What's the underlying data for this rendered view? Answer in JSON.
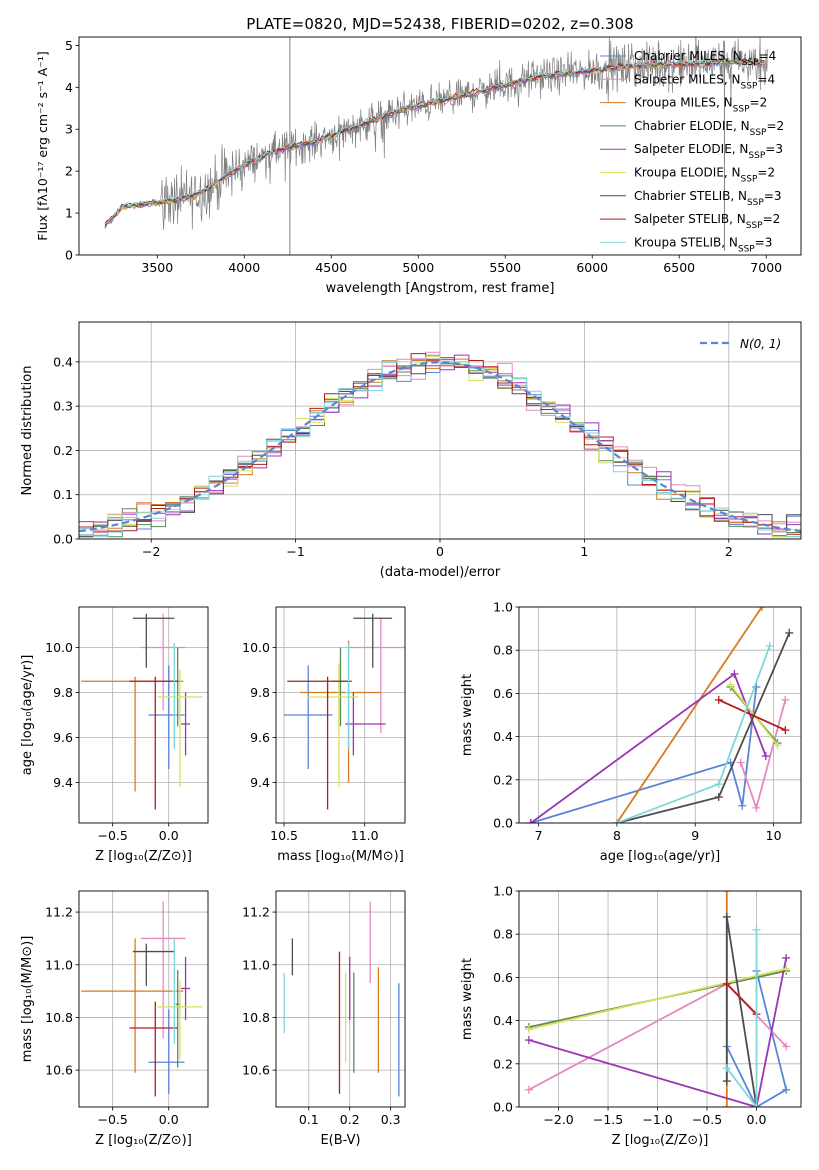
{
  "figure": {
    "title": "PLATE=0820, MJD=52438, FIBERID=0202, z=0.308"
  },
  "colors": {
    "Chabrier MILES": "#5b84d6",
    "Salpeter MILES": "#e58ac0",
    "Kroupa MILES": "#d97a1f",
    "Chabrier ELODIE": "#5a8a5a",
    "Salpeter ELODIE": "#9b35b5",
    "Kroupa ELODIE": "#d7e25a",
    "Chabrier STELIB": "#4d4d4d",
    "Salpeter STELIB": "#b51c1c",
    "Kroupa STELIB": "#7fd6d9",
    "data": "#808080",
    "normal": "#5b84d6"
  },
  "chart_data": [
    {
      "id": "spectrum",
      "type": "line",
      "xlabel": "wavelength [Angstrom, rest frame]",
      "ylabel": "Flux [fλ10⁻¹⁷ erg cm⁻² s⁻¹ A⁻¹]",
      "xlim": [
        3050,
        7200
      ],
      "ylim": [
        0,
        5.2
      ],
      "xticks": [
        3500,
        4000,
        4500,
        5000,
        5500,
        6000,
        6500,
        7000
      ],
      "yticks": [
        0,
        1,
        2,
        3,
        4,
        5
      ],
      "legend_position": "top-right",
      "legend": [
        {
          "name": "Chabrier MILES, N",
          "sub": "SSP",
          "tail": "=4",
          "key": "Chabrier MILES"
        },
        {
          "name": "Salpeter MILES, N",
          "sub": "SSP",
          "tail": "=4",
          "key": "Salpeter MILES"
        },
        {
          "name": "Kroupa MILES, N",
          "sub": "SSP",
          "tail": "=2",
          "key": "Kroupa MILES"
        },
        {
          "name": "Chabrier ELODIE, N",
          "sub": "SSP",
          "tail": "=2",
          "key": "Chabrier ELODIE"
        },
        {
          "name": "Salpeter ELODIE, N",
          "sub": "SSP",
          "tail": "=3",
          "key": "Salpeter ELODIE"
        },
        {
          "name": "Kroupa ELODIE, N",
          "sub": "SSP",
          "tail": "=2",
          "key": "Kroupa ELODIE"
        },
        {
          "name": "Chabrier STELIB, N",
          "sub": "SSP",
          "tail": "=3",
          "key": "Chabrier STELIB"
        },
        {
          "name": "Salpeter STELIB, N",
          "sub": "SSP",
          "tail": "=2",
          "key": "Salpeter STELIB"
        },
        {
          "name": "Kroupa STELIB, N",
          "sub": "SSP",
          "tail": "=3",
          "key": "Kroupa STELIB"
        }
      ],
      "continuum": {
        "x": [
          3200,
          3300,
          3400,
          3500,
          3600,
          3700,
          3800,
          3900,
          4000,
          4100,
          4200,
          4300,
          4400,
          4500,
          4600,
          4700,
          4800,
          4900,
          5000,
          5100,
          5200,
          5300,
          5400,
          5500,
          5600,
          5700,
          5800,
          5900,
          6000,
          6100,
          6200,
          6300,
          6400,
          6500,
          6600,
          6700,
          6800,
          6900,
          7000
        ],
        "y": [
          0.7,
          1.15,
          1.2,
          1.25,
          1.3,
          1.4,
          1.6,
          1.9,
          2.15,
          2.35,
          2.5,
          2.6,
          2.7,
          2.85,
          3.0,
          3.15,
          3.3,
          3.45,
          3.55,
          3.65,
          3.75,
          3.85,
          3.95,
          4.05,
          4.15,
          4.25,
          4.3,
          4.35,
          4.4,
          4.45,
          4.5,
          4.5,
          4.55,
          4.55,
          4.55,
          4.6,
          4.6,
          4.6,
          4.55
        ]
      }
    },
    {
      "id": "residuals",
      "type": "histogram",
      "xlabel": "(data-model)/error",
      "ylabel": "Normed distribution",
      "xlim": [
        -2.5,
        2.5
      ],
      "ylim": [
        0,
        0.49
      ],
      "xticks": [
        -2,
        -1,
        0,
        1,
        2
      ],
      "yticks": [
        0.0,
        0.1,
        0.2,
        0.3,
        0.4
      ],
      "legend_position": "top-right",
      "legend": "N(0, 1)"
    },
    {
      "id": "age_vs_Z",
      "type": "errorbar",
      "xlabel": "Z [log₁₀(Z/Z⊙)]",
      "ylabel": "age  [log₁₀(age/yr)]",
      "xlim": [
        -0.8,
        0.35
      ],
      "ylim": [
        9.22,
        10.18
      ],
      "xticks": [
        -0.5,
        0.0
      ],
      "yticks": [
        9.4,
        9.6,
        9.8,
        10.0
      ],
      "points": [
        {
          "key": "Chabrier MILES",
          "x": 0.0,
          "xerr": [
            0.18,
            0.14
          ],
          "y": 9.7,
          "yerr": [
            0.24,
            0.22
          ]
        },
        {
          "key": "Salpeter MILES",
          "x": -0.05,
          "xerr": [
            0.2,
            0.2
          ],
          "y": 10.0,
          "yerr": [
            0.28,
            0.15
          ]
        },
        {
          "key": "Kroupa MILES",
          "x": -0.3,
          "xerr": [
            0.48,
            0.43
          ],
          "y": 9.85,
          "yerr": [
            0.49,
            0.02
          ]
        },
        {
          "key": "Chabrier ELODIE",
          "x": 0.08,
          "xerr": [
            0.02,
            0.02
          ],
          "y": 9.85,
          "yerr": [
            0.2,
            0.15
          ]
        },
        {
          "key": "Salpeter ELODIE",
          "x": 0.15,
          "xerr": [
            0.04,
            0.04
          ],
          "y": 9.66,
          "yerr": [
            0.14,
            0.14
          ]
        },
        {
          "key": "Kroupa ELODIE",
          "x": 0.1,
          "xerr": [
            0.2,
            0.2
          ],
          "y": 9.78,
          "yerr": [
            0.4,
            0.12
          ]
        },
        {
          "key": "Chabrier STELIB",
          "x": -0.2,
          "xerr": [
            0.12,
            0.25
          ],
          "y": 10.13,
          "yerr": [
            0.22,
            0.02
          ]
        },
        {
          "key": "Salpeter STELIB",
          "x": -0.12,
          "xerr": [
            0.23,
            0.2
          ],
          "y": 9.85,
          "yerr": [
            0.57,
            0.02
          ]
        },
        {
          "key": "Kroupa STELIB",
          "x": 0.05,
          "xerr": [
            0.02,
            0.02
          ],
          "y": 9.8,
          "yerr": [
            0.25,
            0.22
          ]
        }
      ]
    },
    {
      "id": "age_vs_mass",
      "type": "errorbar",
      "xlabel": "mass [log₁₀(M/M⊙)]",
      "ylabel": "",
      "xlim": [
        10.45,
        11.25
      ],
      "ylim": [
        9.22,
        10.18
      ],
      "xticks": [
        10.5,
        11.0
      ],
      "yticks": [
        9.4,
        9.6,
        9.8,
        10.0
      ],
      "points": [
        {
          "key": "Chabrier MILES",
          "x": 10.65,
          "xerr": [
            0.15,
            0.15
          ],
          "y": 9.7,
          "yerr": [
            0.24,
            0.22
          ]
        },
        {
          "key": "Salpeter MILES",
          "x": 11.1,
          "xerr": [
            0.2,
            0.15
          ],
          "y": 10.0,
          "yerr": [
            0.38,
            0.13
          ]
        },
        {
          "key": "Kroupa MILES",
          "x": 10.9,
          "xerr": [
            0.3,
            0.2
          ],
          "y": 9.8,
          "yerr": [
            0.4,
            0.23
          ]
        },
        {
          "key": "Chabrier ELODIE",
          "x": 10.85,
          "xerr": [
            0.05,
            0.05
          ],
          "y": 9.85,
          "yerr": [
            0.2,
            0.15
          ]
        },
        {
          "key": "Salpeter ELODIE",
          "x": 10.93,
          "xerr": [
            0.05,
            0.2
          ],
          "y": 9.66,
          "yerr": [
            0.14,
            0.14
          ]
        },
        {
          "key": "Kroupa ELODIE",
          "x": 10.84,
          "xerr": [
            0.2,
            0.12
          ],
          "y": 9.78,
          "yerr": [
            0.4,
            0.15
          ]
        },
        {
          "key": "Chabrier STELIB",
          "x": 11.05,
          "xerr": [
            0.12,
            0.12
          ],
          "y": 10.13,
          "yerr": [
            0.22,
            0.02
          ]
        },
        {
          "key": "Salpeter STELIB",
          "x": 10.77,
          "xerr": [
            0.25,
            0.15
          ],
          "y": 9.85,
          "yerr": [
            0.57,
            0.02
          ]
        },
        {
          "key": "Kroupa STELIB",
          "x": 10.9,
          "xerr": [
            0.02,
            0.02
          ],
          "y": 9.8,
          "yerr": [
            0.25,
            0.22
          ]
        }
      ]
    },
    {
      "id": "weight_vs_age",
      "type": "line",
      "xlabel": "age  [log₁₀(age/yr)]",
      "ylabel": "mass weight",
      "xlim": [
        6.75,
        10.35
      ],
      "ylim": [
        0,
        1.0
      ],
      "xticks": [
        7,
        8,
        9,
        10
      ],
      "yticks": [
        0.0,
        0.2,
        0.4,
        0.6,
        0.8,
        1.0
      ],
      "series": [
        {
          "key": "Chabrier MILES",
          "x": [
            6.9,
            9.45,
            9.6,
            9.78
          ],
          "y": [
            0.0,
            0.28,
            0.08,
            0.63
          ]
        },
        {
          "key": "Salpeter MILES",
          "x": [
            9.58,
            9.78,
            10.15
          ],
          "y": [
            0.28,
            0.07,
            0.57
          ]
        },
        {
          "key": "Kroupa MILES",
          "x": [
            8.0,
            9.85
          ],
          "y": [
            0.0,
            1.0
          ]
        },
        {
          "key": "Chabrier ELODIE",
          "x": [
            9.45,
            10.05
          ],
          "y": [
            0.63,
            0.37
          ]
        },
        {
          "key": "Salpeter ELODIE",
          "x": [
            6.9,
            9.5,
            9.9
          ],
          "y": [
            0.0,
            0.69,
            0.31
          ]
        },
        {
          "key": "Kroupa ELODIE",
          "x": [
            9.45,
            10.05
          ],
          "y": [
            0.64,
            0.36
          ]
        },
        {
          "key": "Chabrier STELIB",
          "x": [
            8.0,
            9.3,
            10.2
          ],
          "y": [
            0.0,
            0.12,
            0.88
          ]
        },
        {
          "key": "Salpeter STELIB",
          "x": [
            9.3,
            10.15
          ],
          "y": [
            0.57,
            0.43
          ]
        },
        {
          "key": "Kroupa STELIB",
          "x": [
            8.0,
            9.3,
            9.95
          ],
          "y": [
            0.0,
            0.18,
            0.82
          ]
        }
      ]
    },
    {
      "id": "mass_vs_Z",
      "type": "errorbar",
      "xlabel": "Z [log₁₀(Z/Z⊙)]",
      "ylabel": "mass [log₁₀(M/M⊙)]",
      "xlim": [
        -0.8,
        0.35
      ],
      "ylim": [
        10.46,
        11.28
      ],
      "xticks": [
        -0.5,
        0.0
      ],
      "yticks": [
        10.6,
        10.8,
        11.0,
        11.2
      ],
      "points": [
        {
          "key": "Chabrier MILES",
          "x": 0.0,
          "xerr": [
            0.18,
            0.14
          ],
          "y": 10.63,
          "yerr": [
            0.12,
            0.2
          ]
        },
        {
          "key": "Salpeter MILES",
          "x": -0.05,
          "xerr": [
            0.2,
            0.2
          ],
          "y": 11.1,
          "yerr": [
            0.38,
            0.14
          ]
        },
        {
          "key": "Kroupa MILES",
          "x": -0.3,
          "xerr": [
            0.48,
            0.43
          ],
          "y": 10.9,
          "yerr": [
            0.31,
            0.2
          ]
        },
        {
          "key": "Chabrier ELODIE",
          "x": 0.08,
          "xerr": [
            0.02,
            0.02
          ],
          "y": 10.85,
          "yerr": [
            0.24,
            0.13
          ]
        },
        {
          "key": "Salpeter ELODIE",
          "x": 0.15,
          "xerr": [
            0.04,
            0.04
          ],
          "y": 10.91,
          "yerr": [
            0.12,
            0.12
          ]
        },
        {
          "key": "Kroupa ELODIE",
          "x": 0.1,
          "xerr": [
            0.2,
            0.2
          ],
          "y": 10.84,
          "yerr": [
            0.2,
            0.1
          ]
        },
        {
          "key": "Chabrier STELIB",
          "x": -0.2,
          "xerr": [
            0.12,
            0.25
          ],
          "y": 11.05,
          "yerr": [
            0.13,
            0.03
          ]
        },
        {
          "key": "Salpeter STELIB",
          "x": -0.12,
          "xerr": [
            0.23,
            0.2
          ],
          "y": 10.76,
          "yerr": [
            0.26,
            0.1
          ]
        },
        {
          "key": "Kroupa STELIB",
          "x": 0.05,
          "xerr": [
            0.02,
            0.02
          ],
          "y": 10.9,
          "yerr": [
            0.2,
            0.2
          ]
        }
      ]
    },
    {
      "id": "mass_vs_EBV",
      "type": "errorbar",
      "xlabel": "E(B-V)",
      "ylabel": "",
      "xlim": [
        0.02,
        0.335
      ],
      "ylim": [
        10.46,
        11.28
      ],
      "xticks": [
        0.1,
        0.2,
        0.3
      ],
      "yticks": [
        10.6,
        10.8,
        11.0,
        11.2
      ],
      "points": [
        {
          "key": "Chabrier MILES",
          "x": 0.32,
          "xerr": [
            0,
            0
          ],
          "y": 10.72,
          "yerr": [
            0.22,
            0.21
          ]
        },
        {
          "key": "Salpeter MILES",
          "x": 0.25,
          "xerr": [
            0,
            0
          ],
          "y": 11.1,
          "yerr": [
            0.17,
            0.14
          ]
        },
        {
          "key": "Kroupa MILES",
          "x": 0.27,
          "xerr": [
            0,
            0
          ],
          "y": 10.83,
          "yerr": [
            0.24,
            0.16
          ]
        },
        {
          "key": "Chabrier ELODIE",
          "x": 0.21,
          "xerr": [
            0,
            0
          ],
          "y": 10.83,
          "yerr": [
            0.24,
            0.14
          ]
        },
        {
          "key": "Salpeter ELODIE",
          "x": 0.2,
          "xerr": [
            0,
            0
          ],
          "y": 10.91,
          "yerr": [
            0.12,
            0.12
          ]
        },
        {
          "key": "Kroupa ELODIE",
          "x": 0.19,
          "xerr": [
            0,
            0
          ],
          "y": 10.83,
          "yerr": [
            0.2,
            0.14
          ]
        },
        {
          "key": "Chabrier STELIB",
          "x": 0.06,
          "xerr": [
            0,
            0
          ],
          "y": 11.04,
          "yerr": [
            0.08,
            0.06
          ]
        },
        {
          "key": "Salpeter STELIB",
          "x": 0.175,
          "xerr": [
            0,
            0
          ],
          "y": 10.78,
          "yerr": [
            0.27,
            0.27
          ]
        },
        {
          "key": "Kroupa STELIB",
          "x": 0.04,
          "xerr": [
            0,
            0
          ],
          "y": 10.86,
          "yerr": [
            0.12,
            0.11
          ]
        }
      ]
    },
    {
      "id": "weight_vs_Z",
      "type": "line",
      "xlabel": "Z [log₁₀(Z/Z⊙)]",
      "ylabel": "mass weight",
      "xlim": [
        -2.4,
        0.45
      ],
      "ylim": [
        0,
        1.0
      ],
      "xticks": [
        -2.0,
        -1.5,
        -1.0,
        -0.5,
        0.0
      ],
      "yticks": [
        0.0,
        0.2,
        0.4,
        0.6,
        0.8,
        1.0
      ],
      "series": [
        {
          "key": "Chabrier MILES",
          "x": [
            -0.3,
            0.0,
            0.3,
            0.0
          ],
          "y": [
            0.28,
            0.0,
            0.08,
            0.63
          ]
        },
        {
          "key": "Salpeter MILES",
          "x": [
            -2.3,
            -0.3,
            0.3
          ],
          "y": [
            0.08,
            0.57,
            0.28
          ]
        },
        {
          "key": "Kroupa MILES",
          "x": [
            -0.3,
            -0.3
          ],
          "y": [
            0.0,
            1.0
          ]
        },
        {
          "key": "Chabrier ELODIE",
          "x": [
            -2.3,
            0.3
          ],
          "y": [
            0.37,
            0.63
          ]
        },
        {
          "key": "Salpeter ELODIE",
          "x": [
            -2.3,
            0.0,
            0.3
          ],
          "y": [
            0.31,
            0.0,
            0.69
          ]
        },
        {
          "key": "Kroupa ELODIE",
          "x": [
            -2.3,
            0.3
          ],
          "y": [
            0.36,
            0.64
          ]
        },
        {
          "key": "Chabrier STELIB",
          "x": [
            -0.3,
            -0.3,
            0.0
          ],
          "y": [
            0.12,
            0.88,
            0.0
          ]
        },
        {
          "key": "Salpeter STELIB",
          "x": [
            -0.3,
            0.0
          ],
          "y": [
            0.57,
            0.43
          ]
        },
        {
          "key": "Kroupa STELIB",
          "x": [
            -0.3,
            0.0,
            0.0
          ],
          "y": [
            0.18,
            0.0,
            0.82
          ]
        }
      ]
    }
  ]
}
